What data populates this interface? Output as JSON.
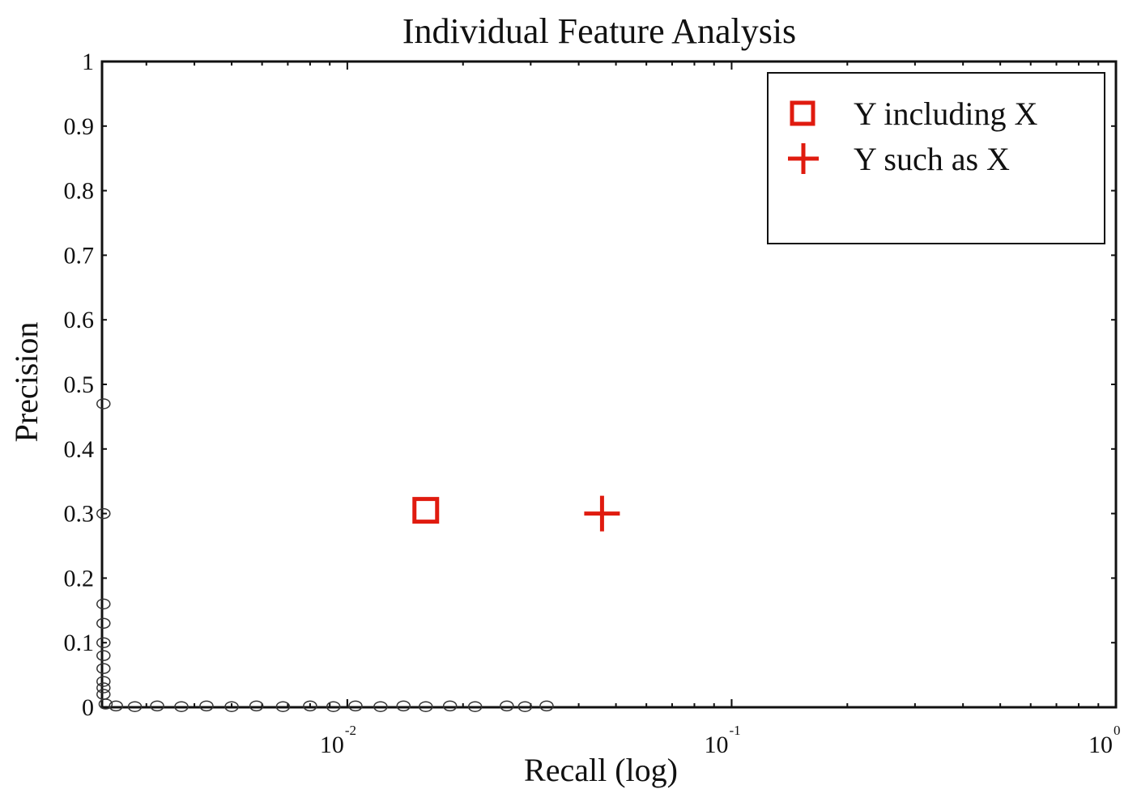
{
  "colors": {
    "series": "#e01b0f",
    "axis": "#111111",
    "background": "#ffffff",
    "scatter_outline": "#333333"
  },
  "chart_data": {
    "type": "scatter",
    "title": "Individual Feature Analysis",
    "xlabel": "Recall (log)",
    "ylabel": "Precision",
    "xscale": "log",
    "xlim": [
      0.0023,
      1
    ],
    "ylim": [
      0,
      1
    ],
    "x_ticks": [
      {
        "base": "10",
        "exp": "-2",
        "value": 0.01
      },
      {
        "base": "10",
        "exp": "-1",
        "value": 0.1
      },
      {
        "base": "10",
        "exp": "0",
        "value": 1
      }
    ],
    "y_ticks": [
      {
        "label": "0",
        "value": 0
      },
      {
        "label": "0.1",
        "value": 0.1
      },
      {
        "label": "0.2",
        "value": 0.2
      },
      {
        "label": "0.3",
        "value": 0.3
      },
      {
        "label": "0.4",
        "value": 0.4
      },
      {
        "label": "0.5",
        "value": 0.5
      },
      {
        "label": "0.6",
        "value": 0.6
      },
      {
        "label": "0.7",
        "value": 0.7
      },
      {
        "label": "0.8",
        "value": 0.8
      },
      {
        "label": "0.9",
        "value": 0.9
      },
      {
        "label": "1",
        "value": 1
      }
    ],
    "legend_position": "top-right",
    "grid": false,
    "series": [
      {
        "name": "Y including X",
        "marker": "square",
        "color": "#e01b0f",
        "points": [
          {
            "x": 0.016,
            "y": 0.305
          }
        ]
      },
      {
        "name": "Y such as X",
        "marker": "plus",
        "color": "#e01b0f",
        "points": [
          {
            "x": 0.046,
            "y": 0.3
          }
        ]
      },
      {
        "marker": "circle-open",
        "color": "#333333",
        "points": [
          {
            "x": 0.00232,
            "y": 0.47
          },
          {
            "x": 0.00232,
            "y": 0.3
          },
          {
            "x": 0.00232,
            "y": 0.16
          },
          {
            "x": 0.00232,
            "y": 0.13
          },
          {
            "x": 0.00232,
            "y": 0.1
          },
          {
            "x": 0.00232,
            "y": 0.08
          },
          {
            "x": 0.00232,
            "y": 0.06
          },
          {
            "x": 0.00232,
            "y": 0.04
          },
          {
            "x": 0.00232,
            "y": 0.03
          },
          {
            "x": 0.00232,
            "y": 0.02
          },
          {
            "x": 0.00235,
            "y": 0.005
          },
          {
            "x": 0.0025,
            "y": 0.002
          },
          {
            "x": 0.0028,
            "y": 0.001
          },
          {
            "x": 0.0032,
            "y": 0.002
          },
          {
            "x": 0.0037,
            "y": 0.001
          },
          {
            "x": 0.0043,
            "y": 0.002
          },
          {
            "x": 0.005,
            "y": 0.001
          },
          {
            "x": 0.0058,
            "y": 0.002
          },
          {
            "x": 0.0068,
            "y": 0.001
          },
          {
            "x": 0.008,
            "y": 0.002
          },
          {
            "x": 0.0092,
            "y": 0.001
          },
          {
            "x": 0.0105,
            "y": 0.002
          },
          {
            "x": 0.0122,
            "y": 0.001
          },
          {
            "x": 0.014,
            "y": 0.002
          },
          {
            "x": 0.016,
            "y": 0.001
          },
          {
            "x": 0.0185,
            "y": 0.002
          },
          {
            "x": 0.0215,
            "y": 0.001
          },
          {
            "x": 0.026,
            "y": 0.002
          },
          {
            "x": 0.029,
            "y": 0.001
          },
          {
            "x": 0.033,
            "y": 0.002
          }
        ]
      }
    ]
  }
}
